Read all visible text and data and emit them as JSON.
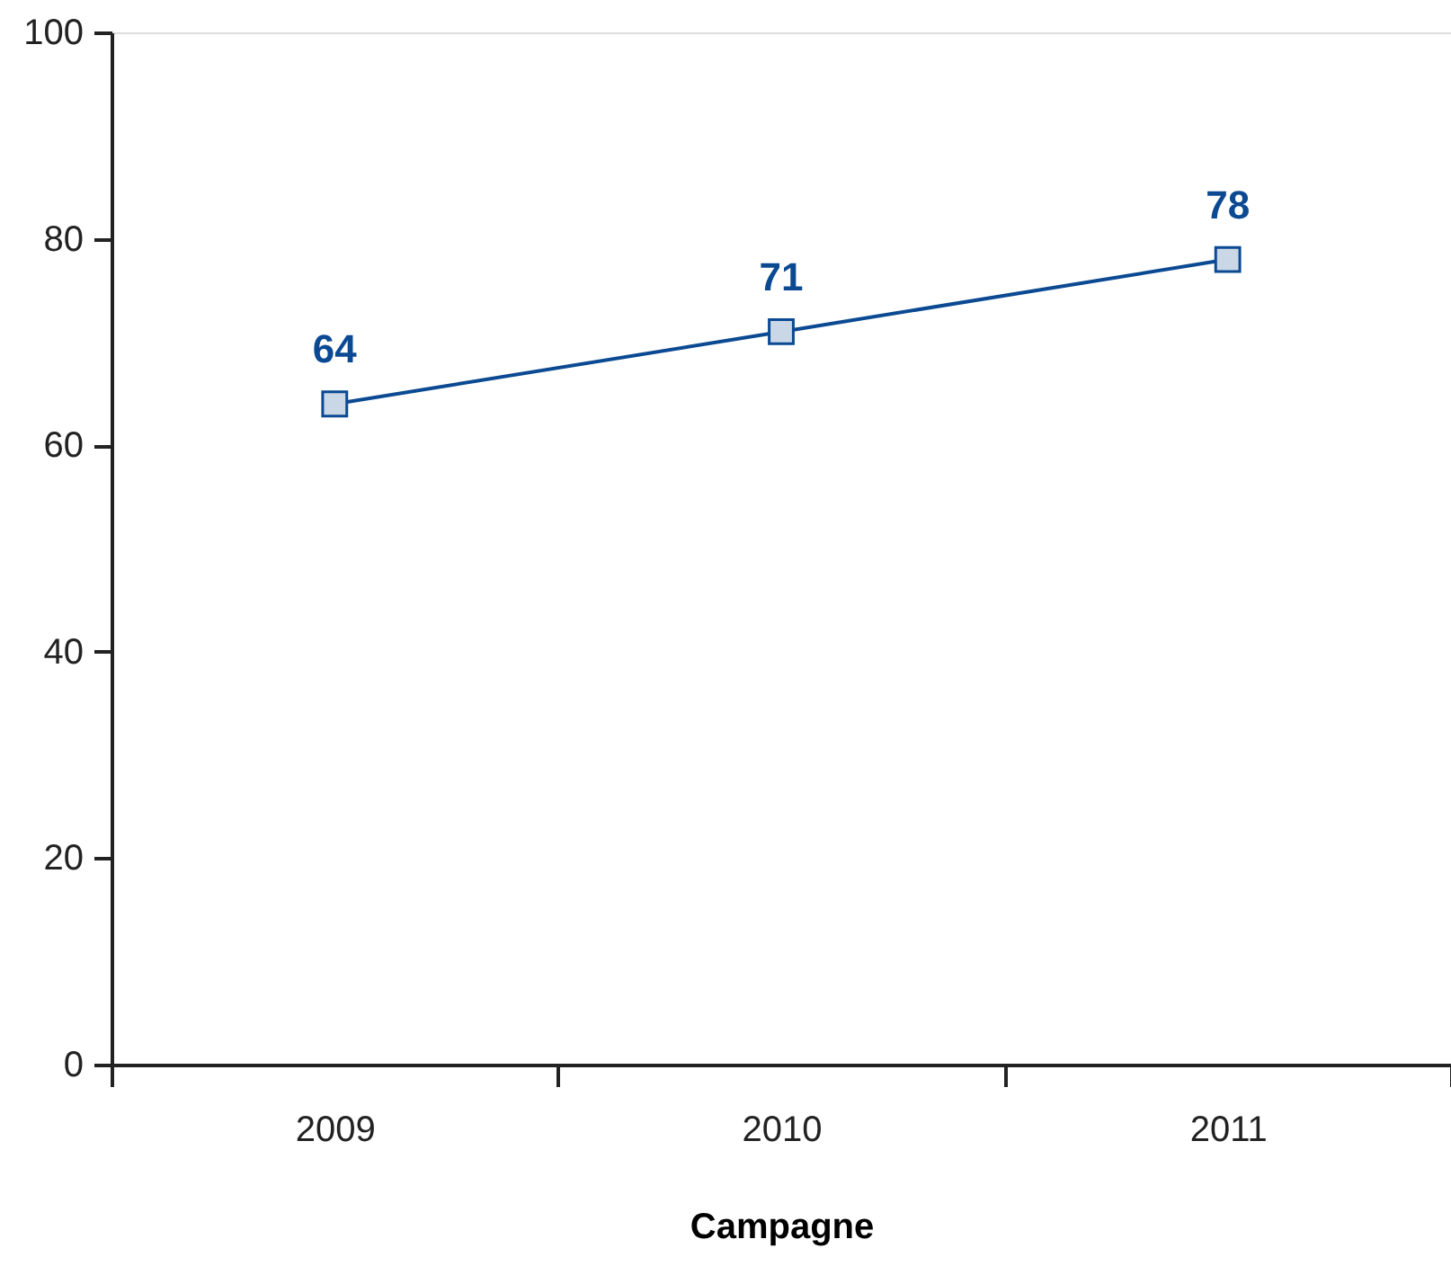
{
  "chart_data": {
    "type": "line",
    "xlabel": "Campagne",
    "categories": [
      "2009",
      "2010",
      "2011"
    ],
    "series": [
      {
        "color": "#0b4a92",
        "values": [
          64,
          71,
          78
        ]
      }
    ],
    "ylim": [
      0,
      100
    ],
    "yticks": [
      0,
      20,
      40,
      60,
      80,
      100
    ],
    "grid": false,
    "marker": "square",
    "line_style": "solid",
    "data_labels": true
  }
}
